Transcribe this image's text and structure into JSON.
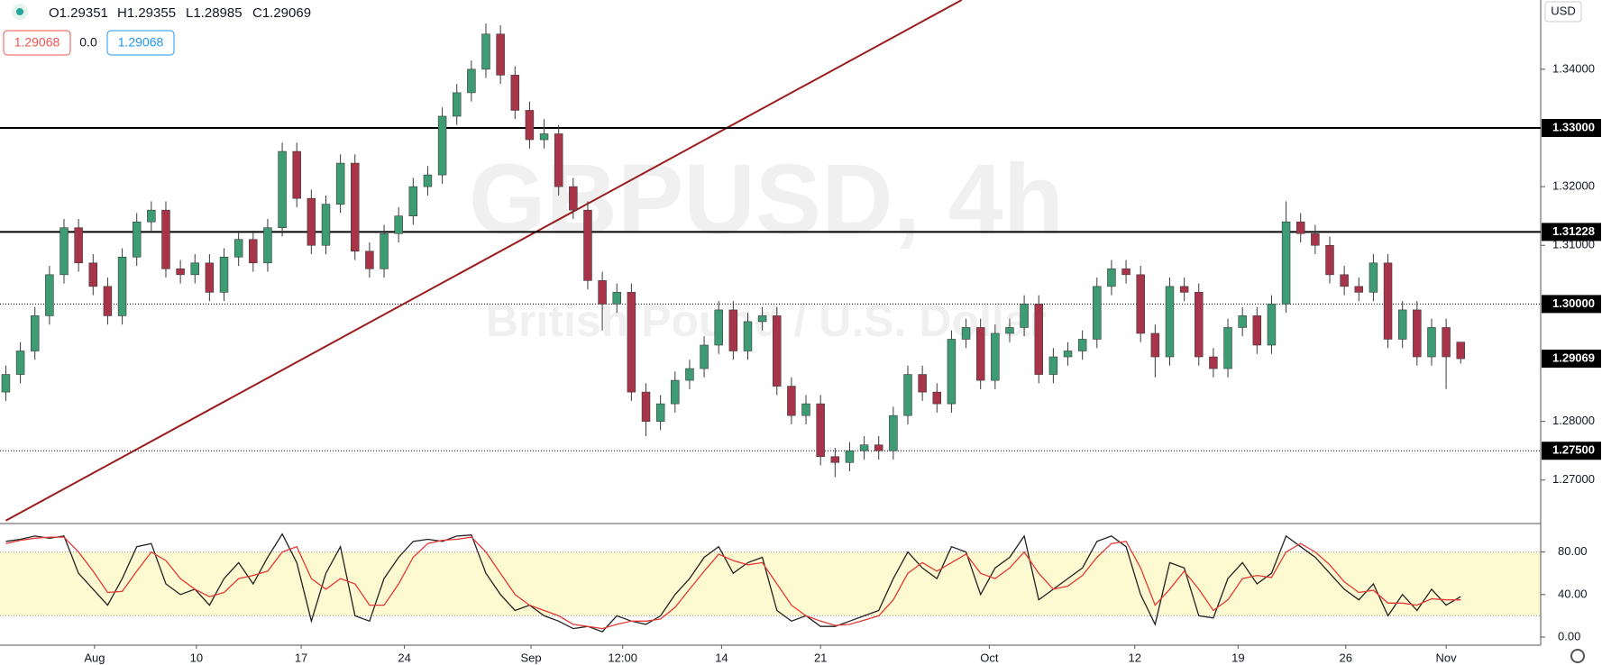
{
  "chart_data": {
    "type": "candlestick",
    "header": {
      "ohlc": [
        "O1.29351",
        "H1.29355",
        "L1.28985",
        "C1.29069"
      ],
      "bid": "1.29068",
      "spread": "0.0",
      "ask": "1.29068"
    },
    "watermark": {
      "symbol": "GBPUSD, 4h",
      "name": "British Pound / U.S. Dollar"
    },
    "currency": "USD",
    "open": [
      1.285,
      1.288,
      1.292,
      1.298,
      1.305,
      1.313,
      1.307,
      1.303,
      1.298,
      1.308,
      1.314,
      1.316,
      1.306,
      1.305,
      1.307,
      1.302,
      1.308,
      1.311,
      1.307,
      1.313,
      1.326,
      1.318,
      1.31,
      1.317,
      1.324,
      1.309,
      1.306,
      1.312,
      1.315,
      1.32,
      1.322,
      1.332,
      1.336,
      1.34,
      1.346,
      1.339,
      1.333,
      1.328,
      1.329,
      1.32,
      1.316,
      1.304,
      1.3,
      1.302,
      1.285,
      1.28,
      1.283,
      1.287,
      1.289,
      1.293,
      1.299,
      1.292,
      1.297,
      1.298,
      1.286,
      1.281,
      1.283,
      1.274,
      1.273,
      1.275,
      1.276,
      1.275,
      1.281,
      1.288,
      1.285,
      1.283,
      1.294,
      1.296,
      1.287,
      1.295,
      1.296,
      1.3,
      1.288,
      1.291,
      1.292,
      1.294,
      1.303,
      1.306,
      1.305,
      1.295,
      1.291,
      1.303,
      1.302,
      1.291,
      1.289,
      1.296,
      1.298,
      1.293,
      1.3,
      1.314,
      1.312,
      1.31,
      1.305,
      1.303,
      1.302,
      1.307,
      1.294,
      1.299,
      1.291,
      1.296,
      1.29351
    ],
    "high": [
      1.2895,
      1.2935,
      1.2995,
      1.3065,
      1.3145,
      1.3145,
      1.3085,
      1.3045,
      1.3095,
      1.3155,
      1.3175,
      1.3175,
      1.3075,
      1.3085,
      1.3085,
      1.3095,
      1.3125,
      1.3125,
      1.3145,
      1.3275,
      1.3275,
      1.3195,
      1.3185,
      1.3255,
      1.3255,
      1.3105,
      1.3135,
      1.3165,
      1.3215,
      1.3235,
      1.3335,
      1.3375,
      1.3415,
      1.3478,
      1.3475,
      1.3405,
      1.3345,
      1.3315,
      1.3305,
      1.3215,
      1.3175,
      1.3055,
      1.3035,
      1.3035,
      1.2865,
      1.2845,
      1.2885,
      1.2905,
      1.2945,
      1.3005,
      1.3005,
      1.2985,
      1.2995,
      1.2995,
      1.2875,
      1.2845,
      1.2845,
      1.2755,
      1.2765,
      1.2775,
      1.2775,
      1.2825,
      1.2895,
      1.2895,
      1.2865,
      1.2955,
      1.2975,
      1.2975,
      1.2965,
      1.2975,
      1.3015,
      1.3015,
      1.2925,
      1.2935,
      1.2955,
      1.3045,
      1.3075,
      1.3075,
      1.3065,
      1.2965,
      1.3045,
      1.3045,
      1.3035,
      1.2925,
      1.2975,
      1.2995,
      1.2995,
      1.3015,
      1.3175,
      1.3155,
      1.3135,
      1.3115,
      1.3065,
      1.3045,
      1.3085,
      1.3085,
      1.3005,
      1.3005,
      1.2975,
      1.2975,
      1.29355
    ],
    "low": [
      1.2835,
      1.2865,
      1.2905,
      1.2965,
      1.3035,
      1.3055,
      1.3015,
      1.2965,
      1.2965,
      1.3065,
      1.3125,
      1.3045,
      1.3035,
      1.3035,
      1.3005,
      1.3005,
      1.3065,
      1.3055,
      1.3055,
      1.3115,
      1.3165,
      1.3085,
      1.3085,
      1.3155,
      1.3075,
      1.3045,
      1.3045,
      1.3105,
      1.3135,
      1.3185,
      1.3205,
      1.3305,
      1.3345,
      1.3385,
      1.3375,
      1.3315,
      1.3265,
      1.3265,
      1.3185,
      1.3145,
      1.3025,
      1.2955,
      1.2985,
      1.2835,
      1.2775,
      1.2785,
      1.2815,
      1.2855,
      1.2875,
      1.2915,
      1.2905,
      1.2905,
      1.2955,
      1.2845,
      1.2795,
      1.2795,
      1.2725,
      1.2705,
      1.2715,
      1.2735,
      1.2735,
      1.2735,
      1.2795,
      1.2835,
      1.2815,
      1.2815,
      1.2925,
      1.2855,
      1.2855,
      1.2935,
      1.2945,
      1.2865,
      1.2865,
      1.2895,
      1.2905,
      1.2925,
      1.3015,
      1.3035,
      1.2935,
      1.2875,
      1.2895,
      1.3005,
      1.2895,
      1.2875,
      1.2875,
      1.2945,
      1.2915,
      1.2915,
      1.2985,
      1.3105,
      1.3085,
      1.3035,
      1.3015,
      1.3005,
      1.3005,
      1.2925,
      1.2925,
      1.2895,
      1.2895,
      1.2855,
      1.28985
    ],
    "close": [
      1.288,
      1.292,
      1.298,
      1.305,
      1.313,
      1.307,
      1.303,
      1.298,
      1.308,
      1.314,
      1.316,
      1.306,
      1.305,
      1.307,
      1.302,
      1.308,
      1.311,
      1.307,
      1.313,
      1.326,
      1.318,
      1.31,
      1.317,
      1.324,
      1.309,
      1.306,
      1.312,
      1.315,
      1.32,
      1.322,
      1.332,
      1.336,
      1.34,
      1.346,
      1.339,
      1.333,
      1.328,
      1.329,
      1.32,
      1.316,
      1.304,
      1.3,
      1.302,
      1.285,
      1.28,
      1.283,
      1.287,
      1.289,
      1.293,
      1.299,
      1.292,
      1.297,
      1.298,
      1.286,
      1.281,
      1.283,
      1.274,
      1.273,
      1.275,
      1.276,
      1.275,
      1.281,
      1.288,
      1.285,
      1.283,
      1.294,
      1.296,
      1.287,
      1.295,
      1.296,
      1.3,
      1.288,
      1.291,
      1.292,
      1.294,
      1.303,
      1.306,
      1.305,
      1.295,
      1.291,
      1.303,
      1.302,
      1.291,
      1.289,
      1.296,
      1.298,
      1.293,
      1.3,
      1.314,
      1.312,
      1.31,
      1.305,
      1.303,
      1.302,
      1.307,
      1.294,
      1.299,
      1.291,
      1.296,
      1.291,
      1.29069
    ],
    "up_color": "#3d9c73",
    "down_color": "#a8344a",
    "wick_color": "#3a3a3a",
    "xlim": [
      -0.4,
      105.5
    ],
    "xticks": [
      {
        "value": 6.1,
        "label": "Aug"
      },
      {
        "value": 13.1,
        "label": "10"
      },
      {
        "value": 20.3,
        "label": "17"
      },
      {
        "value": 27.4,
        "label": "24"
      },
      {
        "value": 36.1,
        "label": "Sep"
      },
      {
        "value": 42.4,
        "label": "12:00"
      },
      {
        "value": 49.2,
        "label": "14"
      },
      {
        "value": 56.0,
        "label": "21"
      },
      {
        "value": 67.6,
        "label": "Oct"
      },
      {
        "value": 77.6,
        "label": "12"
      },
      {
        "value": 84.7,
        "label": "19"
      },
      {
        "value": 92.1,
        "label": "26"
      },
      {
        "value": 99.0,
        "label": "Nov"
      }
    ],
    "ylim": [
      1.2626,
      1.3518
    ],
    "yticks": [
      {
        "value": 1.27,
        "label": "1.27000"
      },
      {
        "value": 1.28,
        "label": "1.28000"
      },
      {
        "value": 1.3,
        "label": "1.30000"
      },
      {
        "value": 1.31,
        "label": "1.31000"
      },
      {
        "value": 1.32,
        "label": "1.32000"
      },
      {
        "value": 1.34,
        "label": "1.34000"
      }
    ],
    "levels": [
      {
        "value": 1.33,
        "label": "1.33000",
        "style": "solid"
      },
      {
        "value": 1.31228,
        "label": "1.31228",
        "style": "solid"
      },
      {
        "value": 1.3,
        "label": "1.30000",
        "style": "dotted"
      },
      {
        "value": 1.275,
        "label": "1.27500",
        "style": "dotted"
      }
    ],
    "last_price": {
      "value": 1.29069,
      "label": "1.29069"
    },
    "trendline": {
      "color": "#9b1c1c",
      "x": [
        0,
        65.7
      ],
      "y": [
        1.2631,
        1.3518
      ]
    },
    "stochastic": {
      "ylim": [
        -7.6,
        106.8
      ],
      "band": [
        20,
        80
      ],
      "band_color": "#fdf9d0",
      "yticks": [
        {
          "value": 0,
          "label": "0.00"
        },
        {
          "value": 40,
          "label": "40.00"
        },
        {
          "value": 80,
          "label": "80.00"
        }
      ],
      "series": [
        {
          "color": "#222222",
          "values": [
            90,
            92,
            95,
            93,
            95,
            60,
            45,
            30,
            55,
            85,
            88,
            50,
            40,
            45,
            30,
            55,
            70,
            50,
            75,
            97,
            70,
            15,
            60,
            85,
            20,
            15,
            55,
            75,
            90,
            92,
            90,
            95,
            96,
            60,
            40,
            25,
            30,
            20,
            15,
            8,
            10,
            5,
            20,
            15,
            12,
            20,
            40,
            55,
            75,
            85,
            60,
            70,
            75,
            25,
            15,
            20,
            10,
            10,
            15,
            20,
            25,
            55,
            80,
            65,
            55,
            85,
            80,
            40,
            65,
            75,
            95,
            35,
            45,
            55,
            65,
            90,
            95,
            85,
            40,
            12,
            70,
            65,
            20,
            18,
            55,
            70,
            50,
            60,
            95,
            85,
            75,
            60,
            45,
            35,
            50,
            20,
            40,
            25,
            45,
            30,
            38
          ]
        },
        {
          "color": "#e53935",
          "values": [
            88,
            91,
            93,
            94,
            94,
            80,
            62,
            42,
            43,
            62,
            80,
            72,
            55,
            45,
            38,
            42,
            55,
            58,
            62,
            80,
            85,
            55,
            45,
            55,
            50,
            30,
            30,
            50,
            75,
            88,
            91,
            92,
            94,
            80,
            60,
            40,
            30,
            25,
            20,
            12,
            10,
            8,
            12,
            15,
            15,
            17,
            28,
            45,
            62,
            78,
            72,
            68,
            70,
            50,
            30,
            20,
            15,
            11,
            12,
            16,
            20,
            35,
            60,
            70,
            62,
            70,
            78,
            60,
            55,
            65,
            80,
            60,
            45,
            48,
            58,
            75,
            88,
            90,
            65,
            30,
            45,
            62,
            45,
            25,
            35,
            55,
            58,
            56,
            80,
            88,
            80,
            68,
            52,
            42,
            44,
            32,
            32,
            30,
            36,
            35,
            35
          ]
        }
      ]
    }
  }
}
